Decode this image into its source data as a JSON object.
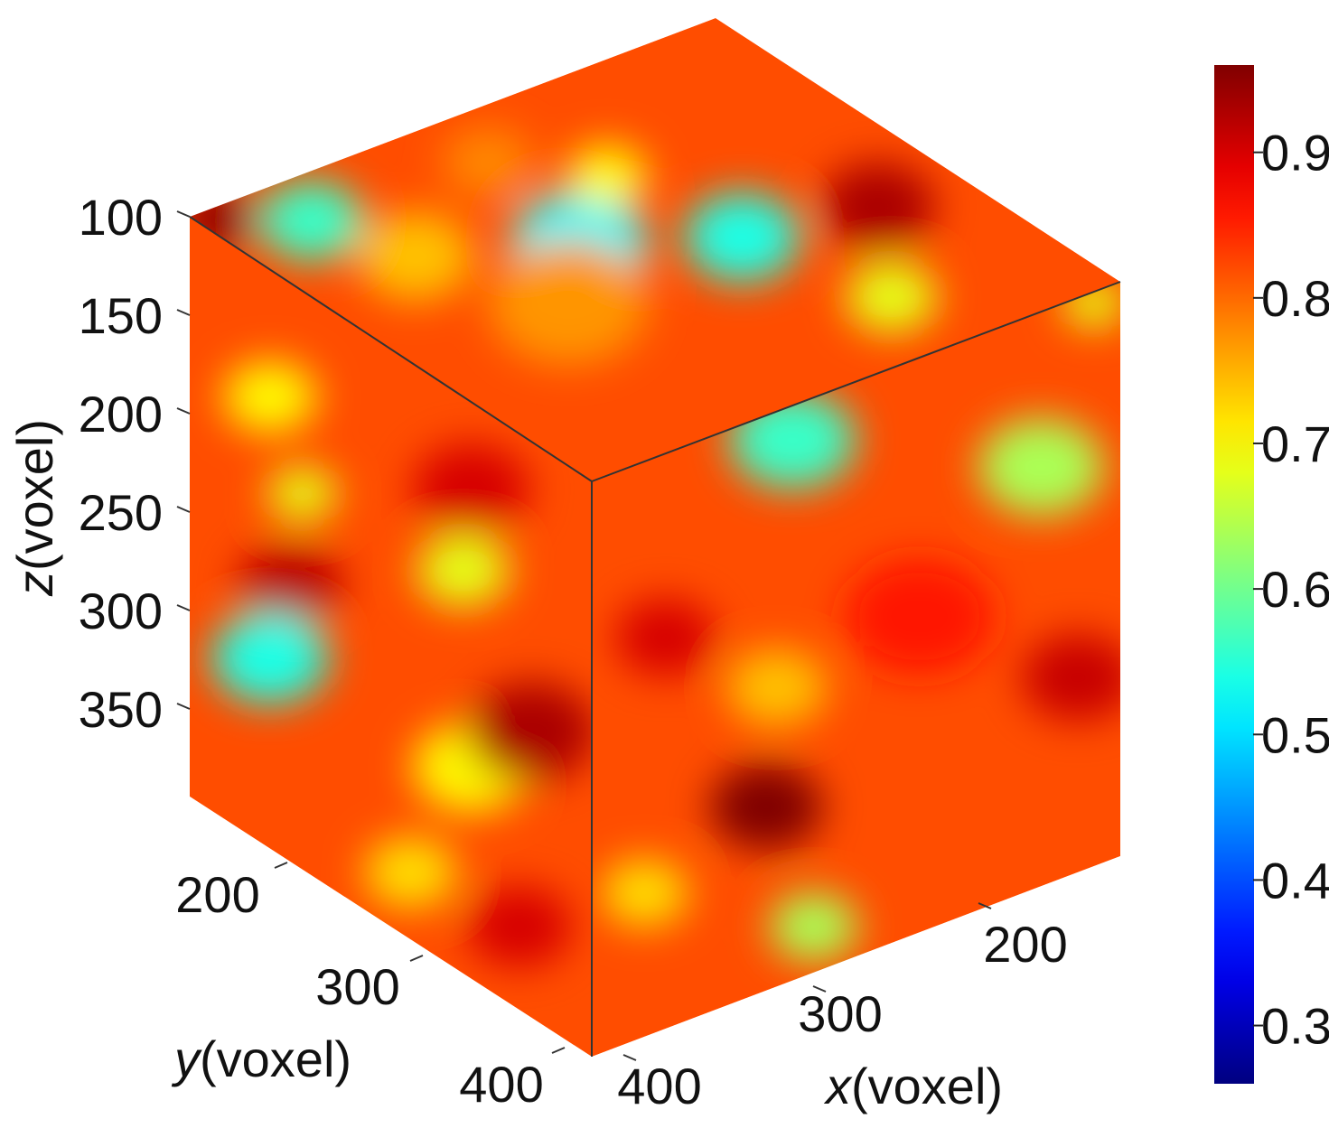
{
  "chart_data": {
    "type": "heatmap",
    "subtype": "3d-volume-cube",
    "z_axis": {
      "label_var": "z",
      "label_unit": "(voxel)",
      "ticks": [
        "100",
        "150",
        "200",
        "250",
        "300",
        "350"
      ],
      "tick_values": [
        100,
        150,
        200,
        250,
        300,
        350
      ]
    },
    "y_axis": {
      "label_var": "y",
      "label_unit": "(voxel)",
      "ticks": [
        "200",
        "300",
        "400"
      ],
      "tick_values": [
        200,
        300,
        400
      ]
    },
    "x_axis": {
      "label_var": "x",
      "label_unit": "(voxel)",
      "ticks": [
        "200",
        "300",
        "400"
      ],
      "tick_values": [
        200,
        300,
        400
      ]
    },
    "colorbar": {
      "colormap": "jet",
      "min": 0.26,
      "max": 0.96,
      "ticks": [
        "0.3",
        "0.4",
        "0.5",
        "0.6",
        "0.7",
        "0.8",
        "0.9"
      ],
      "tick_values": [
        0.3,
        0.4,
        0.5,
        0.6,
        0.7,
        0.8,
        0.9
      ]
    },
    "faces": {
      "background_value": 0.82,
      "top": [
        {
          "u": 0.14,
          "v": 0.12,
          "r": 0.09,
          "value": 0.56
        },
        {
          "u": 0.46,
          "v": 0.14,
          "r": 0.08,
          "value": 0.78
        },
        {
          "u": 0.42,
          "v": 0.42,
          "r": 0.12,
          "value": 0.52
        },
        {
          "u": 0.63,
          "v": 0.55,
          "r": 0.1,
          "value": 0.54
        },
        {
          "u": 0.58,
          "v": 0.28,
          "r": 0.07,
          "value": 0.7
        },
        {
          "u": 0.7,
          "v": 0.83,
          "r": 0.08,
          "value": 0.68
        },
        {
          "u": 0.85,
          "v": 0.6,
          "r": 0.1,
          "value": 0.93
        },
        {
          "u": 0.03,
          "v": 0.03,
          "r": 0.07,
          "value": 0.95
        },
        {
          "u": 0.3,
          "v": 0.55,
          "r": 0.14,
          "value": 0.77
        },
        {
          "u": 0.2,
          "v": 0.3,
          "r": 0.1,
          "value": 0.74
        }
      ],
      "left": [
        {
          "u": 0.2,
          "v": 0.22,
          "r": 0.08,
          "value": 0.7
        },
        {
          "u": 0.68,
          "v": 0.3,
          "r": 0.08,
          "value": 0.68
        },
        {
          "u": 0.28,
          "v": 0.35,
          "r": 0.06,
          "value": 0.68
        },
        {
          "u": 0.25,
          "v": 0.52,
          "r": 0.09,
          "value": 0.92
        },
        {
          "u": 0.2,
          "v": 0.67,
          "r": 0.1,
          "value": 0.54
        },
        {
          "u": 0.7,
          "v": 0.63,
          "r": 0.1,
          "value": 0.7
        },
        {
          "u": 0.85,
          "v": 0.5,
          "r": 0.11,
          "value": 0.93
        },
        {
          "u": 0.7,
          "v": 0.15,
          "r": 0.1,
          "value": 0.9
        },
        {
          "u": 0.55,
          "v": 0.88,
          "r": 0.08,
          "value": 0.72
        },
        {
          "u": 0.82,
          "v": 0.85,
          "r": 0.09,
          "value": 0.9
        }
      ],
      "right": [
        {
          "u": 0.38,
          "v": 0.06,
          "r": 0.1,
          "value": 0.56
        },
        {
          "u": 0.14,
          "v": 0.32,
          "r": 0.08,
          "value": 0.9
        },
        {
          "u": 0.35,
          "v": 0.48,
          "r": 0.08,
          "value": 0.74
        },
        {
          "u": 0.85,
          "v": 0.27,
          "r": 0.1,
          "value": 0.64
        },
        {
          "u": 0.95,
          "v": 0.02,
          "r": 0.05,
          "value": 0.68
        },
        {
          "u": 0.33,
          "v": 0.68,
          "r": 0.09,
          "value": 0.96
        },
        {
          "u": 0.92,
          "v": 0.66,
          "r": 0.09,
          "value": 0.91
        },
        {
          "u": 0.42,
          "v": 0.92,
          "r": 0.07,
          "value": 0.64
        },
        {
          "u": 0.1,
          "v": 0.75,
          "r": 0.07,
          "value": 0.72
        },
        {
          "u": 0.62,
          "v": 0.45,
          "r": 0.12,
          "value": 0.86
        }
      ]
    }
  }
}
